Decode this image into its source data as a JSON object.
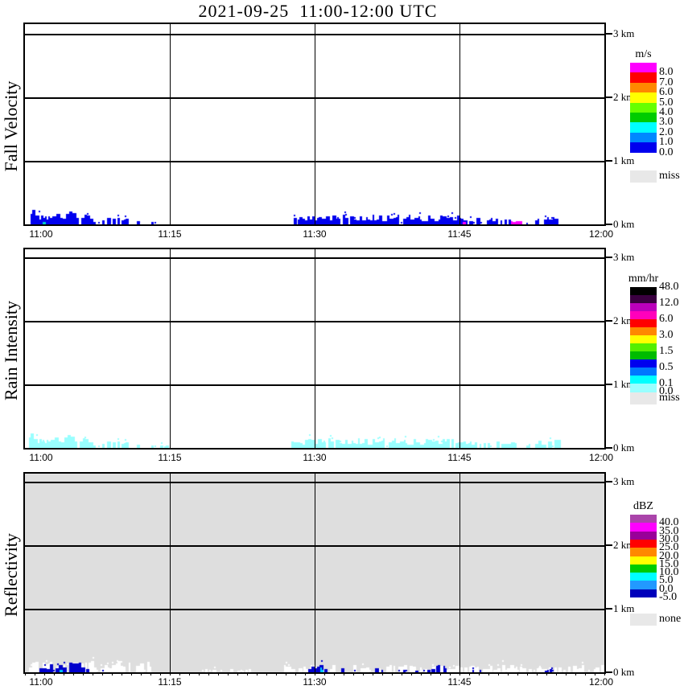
{
  "title": "2021-09-25  11:00-12:00 UTC",
  "chart_data": {
    "type": "heatmap",
    "title": "2021-09-25  11:00-12:00 UTC",
    "x_axis": {
      "tick_labels": [
        "11:00",
        "11:15",
        "11:30",
        "11:45",
        "12:00"
      ],
      "tick_minutes": [
        0,
        15,
        30,
        45,
        60
      ],
      "gridline_minutes": [
        15,
        30,
        45
      ],
      "minor_tick_every_min": 1
    },
    "y_axis": {
      "tick_labels": [
        "3 km",
        "2 km",
        "1 km",
        "0 km"
      ],
      "tick_km": [
        3,
        2,
        1,
        0
      ],
      "gridline_km": [
        3,
        2,
        1
      ],
      "range_km": [
        0,
        3.2
      ]
    },
    "panels": [
      {
        "id": "fall-velocity",
        "ylabel": "Fall Velocity",
        "unit": "m/s",
        "background": "#ffffff",
        "legend": {
          "title": "m/s",
          "band_height": 12.4,
          "bands": [
            "#ff00ff",
            "#ff0000",
            "#ff8800",
            "#ffff00",
            "#66ff00",
            "#00cc00",
            "#00ffff",
            "#0088ff",
            "#0000ee"
          ],
          "labels": [
            [
              1,
              "8.0"
            ],
            [
              2,
              "7.0"
            ],
            [
              3,
              "6.0"
            ],
            [
              4,
              "5.0"
            ],
            [
              5,
              "4.0"
            ],
            [
              6,
              "3.0"
            ],
            [
              7,
              "2.0"
            ],
            [
              8,
              "1.0"
            ],
            [
              9,
              "0.0"
            ]
          ],
          "miss_label": "miss",
          "miss_color": "#e8e8e8",
          "miss_gap": 22
        },
        "echo_color": "#0000ee",
        "echo_segments": [
          [
            0.6,
            6.8,
            0.21,
            0.95
          ],
          [
            6.8,
            11.6,
            0.11,
            0.7
          ],
          [
            12.9,
            13.5,
            0.05,
            0.5
          ],
          [
            27.8,
            45.0,
            0.14,
            0.92
          ],
          [
            45.0,
            50.6,
            0.1,
            0.75
          ],
          [
            51.3,
            52.2,
            0.05,
            0.45
          ],
          [
            52.8,
            55.1,
            0.12,
            0.85
          ]
        ],
        "accents": [
          {
            "color": "#ff00ff",
            "segments": [
              [
                45.2,
                45.7,
                0.04
              ],
              [
                50.3,
                51.3,
                0.05
              ]
            ]
          },
          {
            "color": "#00cccc",
            "segments": [
              [
                1.8,
                2.1,
                0.07
              ]
            ]
          }
        ]
      },
      {
        "id": "rain-intensity",
        "ylabel": "Rain Intensity",
        "unit": "mm/hr",
        "background": "#ffffff",
        "legend": {
          "title": "mm/hr",
          "band_height": 10,
          "bands": [
            "#000000",
            "#3a0040",
            "#bb00bb",
            "#ff00bb",
            "#ff0000",
            "#ff8800",
            "#ffff00",
            "#55ee00",
            "#00bb00",
            "#0000ee",
            "#0077ff",
            "#00ffff",
            "#99ffff"
          ],
          "labels": [
            [
              0,
              "48.0"
            ],
            [
              2,
              "12.0"
            ],
            [
              4,
              "6.0"
            ],
            [
              6,
              "3.0"
            ],
            [
              8,
              "1.5"
            ],
            [
              10,
              "0.5"
            ],
            [
              12,
              "0.1"
            ],
            [
              13,
              "0.0"
            ]
          ],
          "miss_label": "miss",
          "miss_color": "#e8e8e8",
          "miss_gap": 1
        },
        "echo_color": "#99ffff",
        "echo_segments": [
          [
            0.4,
            6.8,
            0.21,
            0.95
          ],
          [
            6.8,
            11.8,
            0.11,
            0.7
          ],
          [
            12.9,
            14.6,
            0.05,
            0.5
          ],
          [
            23.3,
            23.6,
            0.03,
            0.4
          ],
          [
            27.6,
            45.0,
            0.14,
            0.92
          ],
          [
            45.0,
            50.8,
            0.1,
            0.75
          ],
          [
            51.3,
            52.2,
            0.05,
            0.45
          ],
          [
            52.8,
            55.2,
            0.12,
            0.85
          ]
        ],
        "accents": []
      },
      {
        "id": "reflectivity",
        "ylabel": "Reflectivity",
        "unit": "dBZ",
        "background": "#dedede",
        "legend": {
          "title": "dBZ",
          "band_height": 10.3,
          "bands": [
            "#aa44aa",
            "#ff00ff",
            "#990099",
            "#ff0000",
            "#ff8800",
            "#ffff00",
            "#00cc00",
            "#00ffff",
            "#2299ff",
            "#0000bb"
          ],
          "labels": [
            [
              1,
              "40.0"
            ],
            [
              2,
              "35.0"
            ],
            [
              3,
              "30.0"
            ],
            [
              4,
              "25.0"
            ],
            [
              5,
              "20.0"
            ],
            [
              6,
              "15.0"
            ],
            [
              7,
              "10.0"
            ],
            [
              8,
              "5.0"
            ],
            [
              9,
              "0.0"
            ],
            [
              10,
              "-5.0"
            ]
          ],
          "miss_label": "none",
          "miss_color": "#e8e8e8",
          "miss_gap": 20
        },
        "halo_color": "#ffffff",
        "halo_segments": [
          [
            0.4,
            13.3,
            0.16,
            0.7
          ],
          [
            18.3,
            24.3,
            0.06,
            0.45
          ],
          [
            26.8,
            59.8,
            0.11,
            0.75
          ]
        ],
        "echo_color": "#0000cc",
        "echo_segments": [
          [
            1.5,
            2.3,
            0.1,
            0.85
          ],
          [
            2.6,
            6.1,
            0.18,
            0.92
          ],
          [
            6.3,
            6.7,
            0.05,
            0.5
          ],
          [
            8.0,
            8.4,
            0.04,
            0.4
          ],
          [
            10.1,
            10.5,
            0.04,
            0.4
          ],
          [
            29.3,
            30.6,
            0.11,
            0.85
          ],
          [
            31.0,
            31.7,
            0.07,
            0.7
          ],
          [
            32.6,
            42.4,
            0.07,
            0.3
          ],
          [
            42.6,
            43.6,
            0.12,
            0.85
          ],
          [
            45.5,
            45.9,
            0.05,
            0.5
          ],
          [
            46.3,
            47.1,
            0.05,
            0.4
          ],
          [
            53.8,
            54.8,
            0.05,
            0.55
          ]
        ],
        "accents": [
          {
            "color": "#00ccff",
            "segments": [
              [
                3.4,
                3.8,
                0.1
              ],
              [
                30.6,
                30.9,
                0.08
              ]
            ]
          }
        ]
      }
    ]
  }
}
